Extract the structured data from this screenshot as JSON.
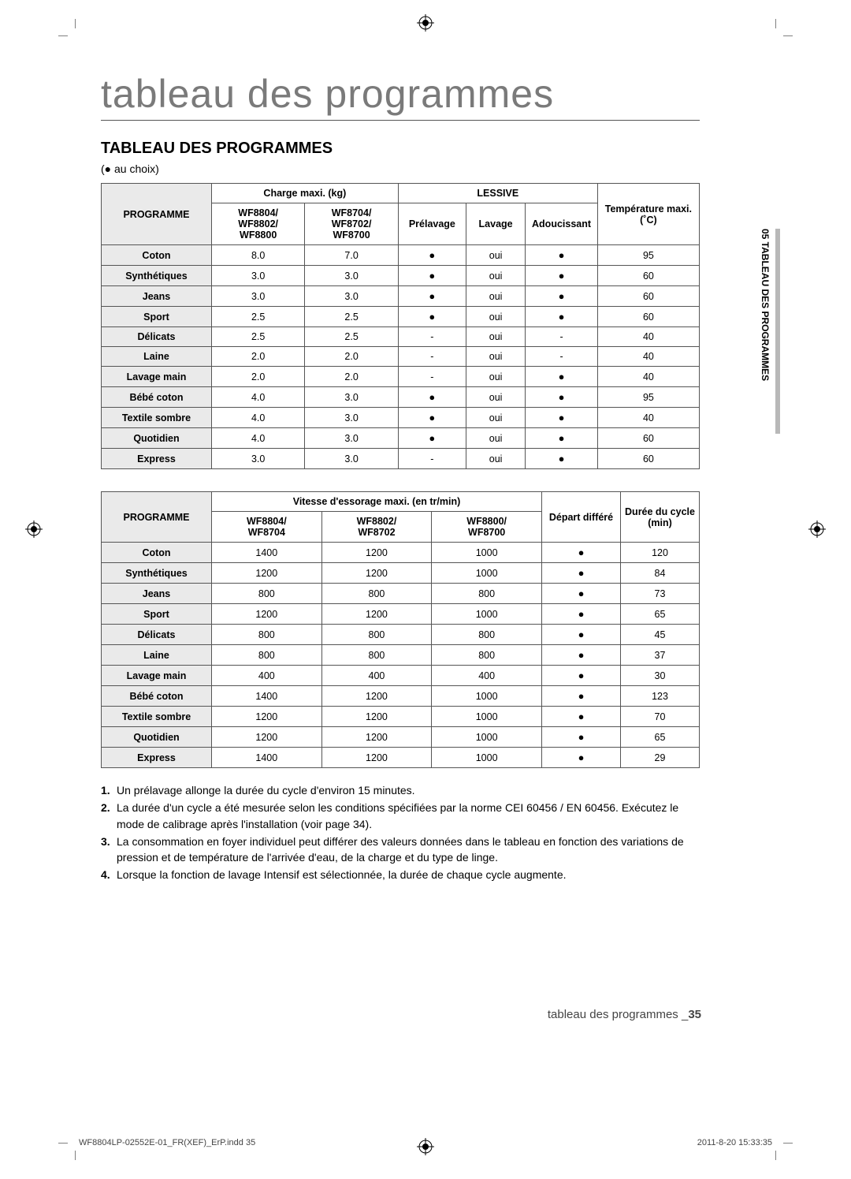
{
  "title_main": "tableau des programmes",
  "subtitle": "TABLEAU DES PROGRAMMES",
  "note_top": "(● au choix)",
  "side_label": "05  TABLEAU DES PROGRAMMES",
  "table1": {
    "h_programme": "PROGRAMME",
    "h_charge": "Charge maxi. (kg)",
    "h_lessive": "LESSIVE",
    "h_temp": "Température maxi. (˚C)",
    "h_col1": "WF8804/\nWF8802/\nWF8800",
    "h_col2": "WF8704/\nWF8702/\nWF8700",
    "h_prelav": "Prélavage",
    "h_lavage": "Lavage",
    "h_adou": "Adoucissant",
    "rows": [
      [
        "Coton",
        "8.0",
        "7.0",
        "●",
        "oui",
        "●",
        "95"
      ],
      [
        "Synthétiques",
        "3.0",
        "3.0",
        "●",
        "oui",
        "●",
        "60"
      ],
      [
        "Jeans",
        "3.0",
        "3.0",
        "●",
        "oui",
        "●",
        "60"
      ],
      [
        "Sport",
        "2.5",
        "2.5",
        "●",
        "oui",
        "●",
        "60"
      ],
      [
        "Délicats",
        "2.5",
        "2.5",
        "-",
        "oui",
        "-",
        "40"
      ],
      [
        "Laine",
        "2.0",
        "2.0",
        "-",
        "oui",
        "-",
        "40"
      ],
      [
        "Lavage main",
        "2.0",
        "2.0",
        "-",
        "oui",
        "●",
        "40"
      ],
      [
        "Bébé coton",
        "4.0",
        "3.0",
        "●",
        "oui",
        "●",
        "95"
      ],
      [
        "Textile sombre",
        "4.0",
        "3.0",
        "●",
        "oui",
        "●",
        "40"
      ],
      [
        "Quotidien",
        "4.0",
        "3.0",
        "●",
        "oui",
        "●",
        "60"
      ],
      [
        "Express",
        "3.0",
        "3.0",
        "-",
        "oui",
        "●",
        "60"
      ]
    ]
  },
  "table2": {
    "h_programme": "PROGRAMME",
    "h_vitesse": "Vitesse d'essorage maxi. (en tr/min)",
    "h_depart": "Départ différé",
    "h_duree": "Durée du cycle (min)",
    "h_c1": "WF8804/\nWF8704",
    "h_c2": "WF8802/\nWF8702",
    "h_c3": "WF8800/\nWF8700",
    "rows": [
      [
        "Coton",
        "1400",
        "1200",
        "1000",
        "●",
        "120"
      ],
      [
        "Synthétiques",
        "1200",
        "1200",
        "1000",
        "●",
        "84"
      ],
      [
        "Jeans",
        "800",
        "800",
        "800",
        "●",
        "73"
      ],
      [
        "Sport",
        "1200",
        "1200",
        "1000",
        "●",
        "65"
      ],
      [
        "Délicats",
        "800",
        "800",
        "800",
        "●",
        "45"
      ],
      [
        "Laine",
        "800",
        "800",
        "800",
        "●",
        "37"
      ],
      [
        "Lavage main",
        "400",
        "400",
        "400",
        "●",
        "30"
      ],
      [
        "Bébé coton",
        "1400",
        "1200",
        "1000",
        "●",
        "123"
      ],
      [
        "Textile sombre",
        "1200",
        "1200",
        "1000",
        "●",
        "70"
      ],
      [
        "Quotidien",
        "1200",
        "1200",
        "1000",
        "●",
        "65"
      ],
      [
        "Express",
        "1400",
        "1200",
        "1000",
        "●",
        "29"
      ]
    ]
  },
  "notes": [
    {
      "n": "1.",
      "t": "Un prélavage allonge la durée du cycle d'environ 15 minutes."
    },
    {
      "n": "2.",
      "t": "La durée d'un cycle a été mesurée selon les conditions spécifiées par la norme CEI 60456 / EN 60456. Exécutez le mode de calibrage après l'installation (voir page 34)."
    },
    {
      "n": "3.",
      "t": "La consommation en foyer individuel peut différer des valeurs données dans le tableau en fonction des variations de pression et de température de l'arrivée d'eau, de la charge et du type de linge."
    },
    {
      "n": "4.",
      "t": "Lorsque la fonction de lavage Intensif est sélectionnée, la durée de chaque cycle augmente."
    }
  ],
  "footer_text": "tableau des programmes _",
  "footer_page": "35",
  "print_left": "WF8804LP-02552E-01_FR(XEF)_ErP.indd   35",
  "print_right": "2011-8-20   15:33:35"
}
